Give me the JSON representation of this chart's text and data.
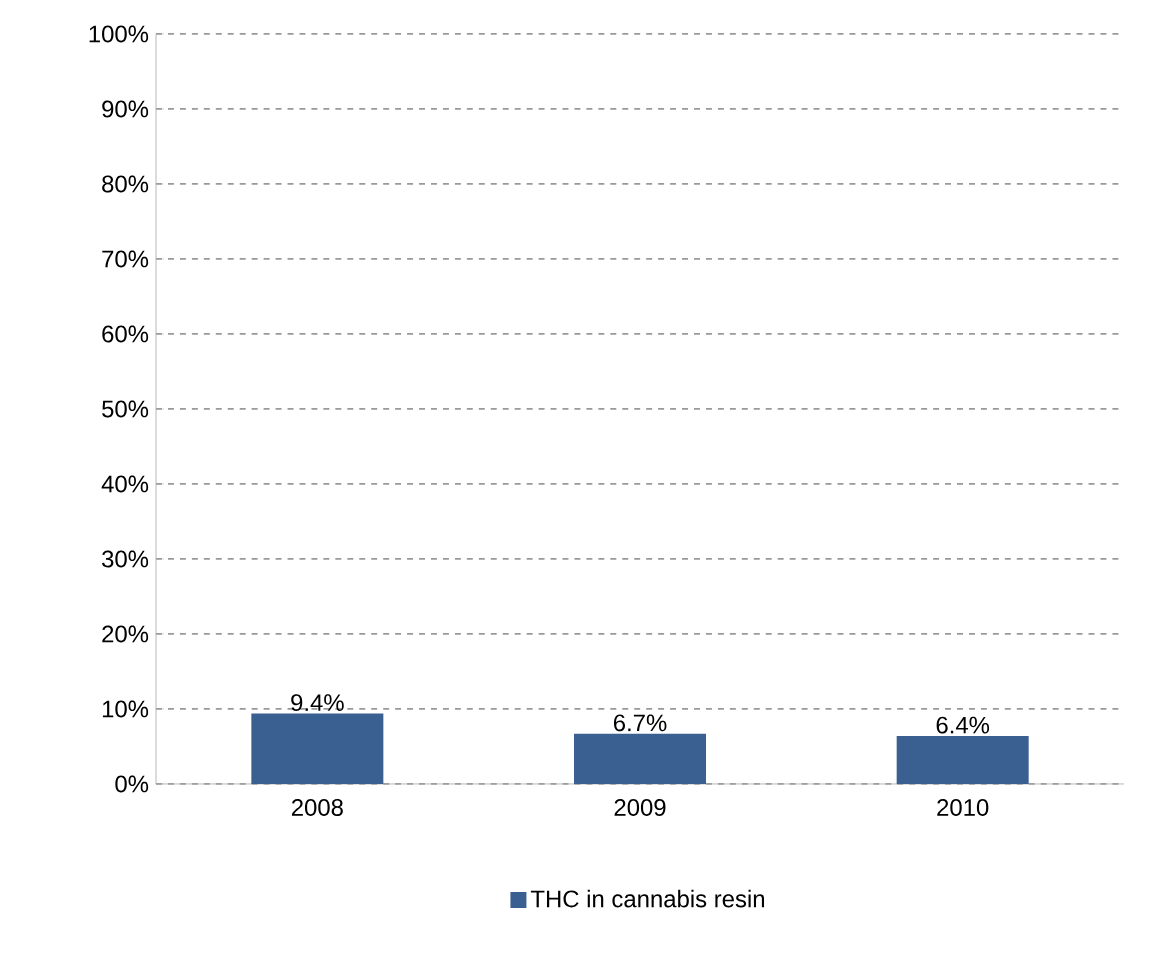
{
  "chart_data": {
    "type": "bar",
    "categories": [
      "2008",
      "2009",
      "2010"
    ],
    "series": [
      {
        "name": "THC in cannabis resin",
        "color": "#3a5f91",
        "values": [
          9.4,
          6.7,
          6.4
        ],
        "value_labels": [
          "9.4%",
          "6.7%",
          "6.4%"
        ]
      }
    ],
    "ylim": [
      0,
      100
    ],
    "yticks": [
      {
        "value": 0,
        "label": "0%"
      },
      {
        "value": 10,
        "label": "10%"
      },
      {
        "value": 20,
        "label": "20%"
      },
      {
        "value": 30,
        "label": "30%"
      },
      {
        "value": 40,
        "label": "40%"
      },
      {
        "value": 50,
        "label": "50%"
      },
      {
        "value": 60,
        "label": "60%"
      },
      {
        "value": 70,
        "label": "70%"
      },
      {
        "value": 80,
        "label": "80%"
      },
      {
        "value": 90,
        "label": "90%"
      },
      {
        "value": 100,
        "label": "100%"
      }
    ],
    "grid": "y",
    "legend": "bottom"
  }
}
